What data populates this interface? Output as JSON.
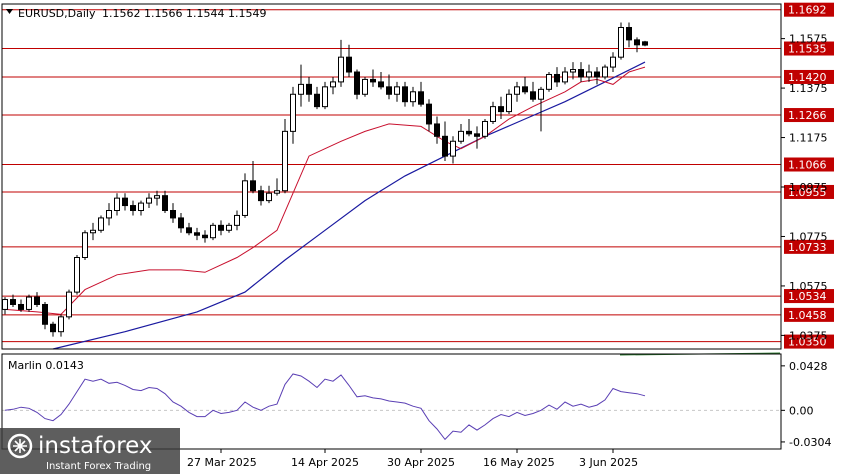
{
  "chart_data": [
    {
      "type": "candlestick",
      "header": {
        "symbol_tf": "EURUSD,Daily",
        "ohlc": "1.1562 1.1566 1.1544 1.1549"
      },
      "y_ticks": [
        "1.1575",
        "1.1375",
        "1.1175",
        "1.0975",
        "1.0775",
        "1.0575",
        "1.0375"
      ],
      "ylim": [
        1.032,
        1.1715
      ],
      "level_lines": [
        {
          "value": 1.1692,
          "label": "1.1692"
        },
        {
          "value": 1.1535,
          "label": "1.1535"
        },
        {
          "value": 1.142,
          "label": "1.1420"
        },
        {
          "value": 1.1266,
          "label": "1.1266"
        },
        {
          "value": 1.1066,
          "label": "1.1066"
        },
        {
          "value": 1.0955,
          "label": "1.0955"
        },
        {
          "value": 1.0733,
          "label": "1.0733"
        },
        {
          "value": 1.0534,
          "label": "1.0534"
        },
        {
          "value": 1.0458,
          "label": "1.0458"
        },
        {
          "value": 1.035,
          "label": "1.0350"
        }
      ],
      "x_tick_labels": [
        "27 Mar 2025",
        "14 Apr 2025",
        "30 Apr 2025",
        "16 May 2025",
        "3 Jun 2025"
      ],
      "x_tick_bars": [
        27,
        40,
        52,
        64,
        76
      ],
      "ohlc_bars": [
        [
          1.048,
          1.053,
          1.046,
          1.052
        ],
        [
          1.052,
          1.054,
          1.049,
          1.05
        ],
        [
          1.05,
          1.052,
          1.047,
          1.048
        ],
        [
          1.048,
          1.054,
          1.047,
          1.053
        ],
        [
          1.053,
          1.055,
          1.049,
          1.05
        ],
        [
          1.05,
          1.051,
          1.04,
          1.042
        ],
        [
          1.042,
          1.043,
          1.037,
          1.039
        ],
        [
          1.039,
          1.046,
          1.037,
          1.045
        ],
        [
          1.045,
          1.056,
          1.044,
          1.055
        ],
        [
          1.055,
          1.07,
          1.054,
          1.069
        ],
        [
          1.069,
          1.08,
          1.068,
          1.079
        ],
        [
          1.079,
          1.083,
          1.076,
          1.08
        ],
        [
          1.08,
          1.086,
          1.079,
          1.085
        ],
        [
          1.085,
          1.091,
          1.082,
          1.088
        ],
        [
          1.088,
          1.095,
          1.086,
          1.093
        ],
        [
          1.093,
          1.095,
          1.088,
          1.09
        ],
        [
          1.09,
          1.092,
          1.086,
          1.088
        ],
        [
          1.088,
          1.092,
          1.086,
          1.091
        ],
        [
          1.091,
          1.095,
          1.089,
          1.093
        ],
        [
          1.093,
          1.096,
          1.09,
          1.094
        ],
        [
          1.094,
          1.096,
          1.087,
          1.088
        ],
        [
          1.088,
          1.091,
          1.083,
          1.085
        ],
        [
          1.085,
          1.087,
          1.079,
          1.081
        ],
        [
          1.081,
          1.083,
          1.078,
          1.079
        ],
        [
          1.079,
          1.081,
          1.076,
          1.078
        ],
        [
          1.078,
          1.08,
          1.075,
          1.077
        ],
        [
          1.077,
          1.083,
          1.076,
          1.082
        ],
        [
          1.082,
          1.084,
          1.078,
          1.08
        ],
        [
          1.08,
          1.083,
          1.079,
          1.082
        ],
        [
          1.082,
          1.088,
          1.08,
          1.086
        ],
        [
          1.086,
          1.103,
          1.085,
          1.1
        ],
        [
          1.1,
          1.108,
          1.095,
          1.096
        ],
        [
          1.096,
          1.098,
          1.09,
          1.092
        ],
        [
          1.092,
          1.098,
          1.091,
          1.095
        ],
        [
          1.095,
          1.101,
          1.094,
          1.096
        ],
        [
          1.096,
          1.125,
          1.095,
          1.12
        ],
        [
          1.12,
          1.138,
          1.115,
          1.135
        ],
        [
          1.135,
          1.147,
          1.13,
          1.139
        ],
        [
          1.139,
          1.142,
          1.132,
          1.135
        ],
        [
          1.135,
          1.138,
          1.129,
          1.13
        ],
        [
          1.13,
          1.14,
          1.129,
          1.138
        ],
        [
          1.138,
          1.142,
          1.135,
          1.14
        ],
        [
          1.14,
          1.157,
          1.138,
          1.15
        ],
        [
          1.15,
          1.155,
          1.142,
          1.144
        ],
        [
          1.144,
          1.145,
          1.133,
          1.135
        ],
        [
          1.135,
          1.142,
          1.134,
          1.141
        ],
        [
          1.141,
          1.145,
          1.138,
          1.14
        ],
        [
          1.14,
          1.144,
          1.137,
          1.138
        ],
        [
          1.138,
          1.143,
          1.133,
          1.135
        ],
        [
          1.135,
          1.14,
          1.132,
          1.138
        ],
        [
          1.138,
          1.14,
          1.13,
          1.132
        ],
        [
          1.132,
          1.138,
          1.13,
          1.136
        ],
        [
          1.136,
          1.14,
          1.13,
          1.131
        ],
        [
          1.131,
          1.133,
          1.12,
          1.123
        ],
        [
          1.123,
          1.126,
          1.115,
          1.118
        ],
        [
          1.118,
          1.124,
          1.108,
          1.11
        ],
        [
          1.11,
          1.118,
          1.107,
          1.116
        ],
        [
          1.116,
          1.123,
          1.115,
          1.12
        ],
        [
          1.12,
          1.125,
          1.118,
          1.119
        ],
        [
          1.119,
          1.122,
          1.113,
          1.118
        ],
        [
          1.118,
          1.125,
          1.117,
          1.124
        ],
        [
          1.124,
          1.132,
          1.123,
          1.13
        ],
        [
          1.13,
          1.134,
          1.125,
          1.128
        ],
        [
          1.128,
          1.137,
          1.127,
          1.135
        ],
        [
          1.135,
          1.14,
          1.132,
          1.138
        ],
        [
          1.138,
          1.142,
          1.135,
          1.136
        ],
        [
          1.136,
          1.14,
          1.132,
          1.133
        ],
        [
          1.133,
          1.138,
          1.12,
          1.137
        ],
        [
          1.137,
          1.144,
          1.136,
          1.143
        ],
        [
          1.143,
          1.146,
          1.138,
          1.14
        ],
        [
          1.14,
          1.146,
          1.139,
          1.144
        ],
        [
          1.144,
          1.148,
          1.141,
          1.145
        ],
        [
          1.145,
          1.148,
          1.14,
          1.142
        ],
        [
          1.142,
          1.147,
          1.14,
          1.144
        ],
        [
          1.144,
          1.146,
          1.139,
          1.142
        ],
        [
          1.142,
          1.147,
          1.141,
          1.146
        ],
        [
          1.146,
          1.152,
          1.144,
          1.15
        ],
        [
          1.15,
          1.164,
          1.149,
          1.162
        ],
        [
          1.162,
          1.164,
          1.154,
          1.157
        ],
        [
          1.157,
          1.158,
          1.152,
          1.155
        ],
        [
          1.1562,
          1.1566,
          1.1544,
          1.1549
        ]
      ],
      "ma_red": [
        [
          0,
          1.048
        ],
        [
          4,
          1.047
        ],
        [
          7,
          1.046
        ],
        [
          10,
          1.056
        ],
        [
          14,
          1.062
        ],
        [
          18,
          1.064
        ],
        [
          22,
          1.064
        ],
        [
          25,
          1.063
        ],
        [
          29,
          1.069
        ],
        [
          31,
          1.073
        ],
        [
          34,
          1.08
        ],
        [
          36,
          1.095
        ],
        [
          38,
          1.11
        ],
        [
          40,
          1.113
        ],
        [
          42,
          1.116
        ],
        [
          45,
          1.12
        ],
        [
          48,
          1.123
        ],
        [
          52,
          1.122
        ],
        [
          55,
          1.116
        ],
        [
          57,
          1.113
        ],
        [
          60,
          1.118
        ],
        [
          63,
          1.125
        ],
        [
          66,
          1.13
        ],
        [
          68,
          1.133
        ],
        [
          70,
          1.136
        ],
        [
          72,
          1.14
        ],
        [
          74,
          1.141
        ],
        [
          76,
          1.139
        ],
        [
          78,
          1.144
        ],
        [
          80,
          1.146
        ]
      ],
      "ma_blue": [
        [
          6,
          1.032
        ],
        [
          15,
          1.039
        ],
        [
          24,
          1.047
        ],
        [
          30,
          1.055
        ],
        [
          35,
          1.068
        ],
        [
          40,
          1.08
        ],
        [
          45,
          1.092
        ],
        [
          50,
          1.102
        ],
        [
          55,
          1.11
        ],
        [
          60,
          1.118
        ],
        [
          65,
          1.125
        ],
        [
          70,
          1.132
        ],
        [
          75,
          1.14
        ],
        [
          80,
          1.148
        ]
      ],
      "oscillator": {
        "title": "Marlin 0.0143",
        "y_ticks": [
          "0.0428",
          "0.00",
          "-0.0304"
        ],
        "ylim": [
          -0.0372,
          0.0542
        ],
        "values": [
          0.0,
          0.001,
          0.003,
          0.002,
          -0.002,
          -0.008,
          -0.01,
          -0.004,
          0.006,
          0.018,
          0.03,
          0.028,
          0.03,
          0.026,
          0.027,
          0.024,
          0.02,
          0.019,
          0.022,
          0.021,
          0.016,
          0.008,
          0.004,
          -0.002,
          -0.006,
          -0.006,
          0.0,
          -0.003,
          -0.002,
          0.0,
          0.008,
          0.003,
          0.0,
          0.004,
          0.006,
          0.025,
          0.035,
          0.033,
          0.028,
          0.022,
          0.03,
          0.028,
          0.034,
          0.024,
          0.013,
          0.014,
          0.012,
          0.011,
          0.009,
          0.008,
          0.007,
          0.004,
          0.002,
          -0.01,
          -0.018,
          -0.028,
          -0.02,
          -0.021,
          -0.014,
          -0.019,
          -0.014,
          -0.008,
          -0.004,
          -0.006,
          -0.002,
          -0.005,
          -0.003,
          0.0,
          0.005,
          0.001,
          0.008,
          0.004,
          0.006,
          0.003,
          0.005,
          0.01,
          0.021,
          0.018,
          0.017,
          0.016,
          0.014
        ]
      }
    }
  ],
  "colors": {
    "candle_up": "#ffffff",
    "candle_down": "#000000",
    "level_line": "#c00000",
    "level_badge": "#c00000",
    "ma_red": "#c8102e",
    "ma_blue": "#1a1aa0",
    "oscillator": "#5a3fb4",
    "grid": "#c8c8c8",
    "axis": "#000000",
    "volume_green": "#2e7d32"
  },
  "branding": {
    "logo_main": "instaforex",
    "logo_tagline": "Instant Forex Trading"
  }
}
